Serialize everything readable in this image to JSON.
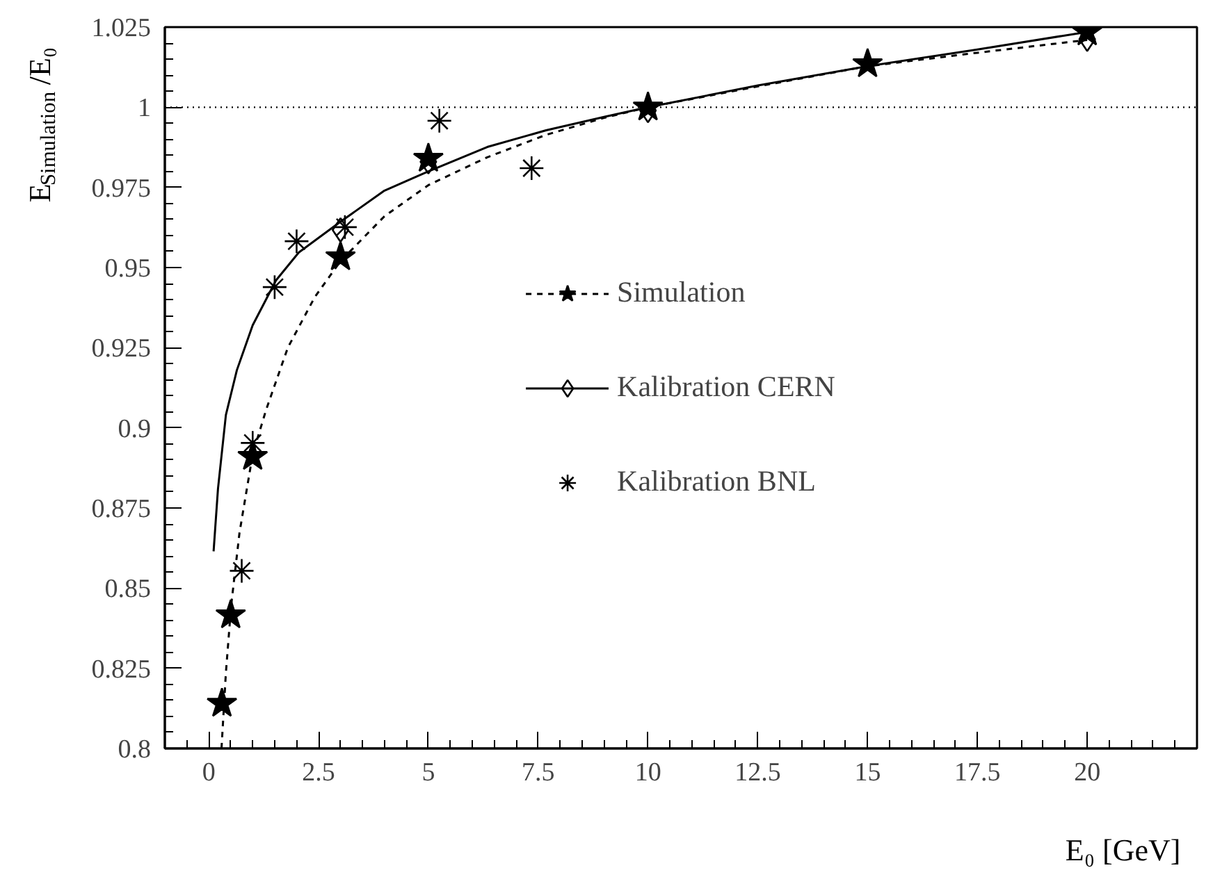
{
  "chart_data": {
    "type": "scatter",
    "xlabel": "E₀ [GeV]",
    "ylabel": "E$_{Simulation}$/E₀",
    "xlim": [
      -1,
      22.5
    ],
    "ylim": [
      0.8,
      1.025
    ],
    "xticks": [
      0,
      2.5,
      5,
      7.5,
      10,
      12.5,
      15,
      17.5,
      20
    ],
    "yticks": [
      0.8,
      0.825,
      0.85,
      0.875,
      0.9,
      0.925,
      0.95,
      0.975,
      1,
      1.025
    ],
    "grid": false,
    "legend": "center",
    "ref_lines": [
      {
        "axis": "y",
        "value": 1,
        "color": "#000000",
        "line_style": "dotted"
      }
    ],
    "series": [
      {
        "type": "line",
        "color": "#000000",
        "line_style": "dashed",
        "marker": "none",
        "x": [
          0.29,
          0.39,
          0.51,
          0.7,
          1.0,
          1.31,
          1.8,
          2.41,
          3.0,
          4.0,
          5.0,
          6.34,
          7.68,
          9.0,
          10,
          12.5,
          15,
          17.5,
          20
        ],
        "values": [
          0.8,
          0.8236,
          0.8446,
          0.8673,
          0.8918,
          0.9058,
          0.925,
          0.9407,
          0.952,
          0.966,
          0.9757,
          0.9844,
          0.9914,
          0.9967,
          1.0,
          1.0065,
          1.0128,
          1.017,
          1.021
        ]
      },
      {
        "name": "Simulation",
        "color": "#000000",
        "marker": "star",
        "x": [
          0.3,
          0.5,
          1,
          3,
          5,
          10,
          15,
          20
        ],
        "values": [
          0.814,
          0.8416,
          0.891,
          0.9533,
          0.984,
          1.0,
          1.0135,
          1.0234
        ]
      },
      {
        "type": "line",
        "color": "#000000",
        "line_style": "solid",
        "marker": "none",
        "x": [
          0.11,
          0.21,
          0.39,
          0.64,
          1.0,
          1.53,
          2.05,
          3.0,
          4.0,
          5.0,
          6.34,
          7.68,
          9.0,
          10,
          12.5,
          15,
          17.5,
          20
        ],
        "values": [
          0.8615,
          0.881,
          0.904,
          0.918,
          0.932,
          0.946,
          0.9547,
          0.9643,
          0.974,
          0.98,
          0.9876,
          0.9928,
          0.997,
          1.0,
          1.0068,
          1.0128,
          1.018,
          1.0235
        ]
      },
      {
        "name": "Kalibration CERN",
        "color": "#000000",
        "marker": "diamond",
        "x": [
          3,
          5,
          10,
          20
        ],
        "values": [
          0.9617,
          0.983,
          0.999,
          1.0212
        ]
      },
      {
        "name": "Kalibration BNL",
        "color": "#000000",
        "marker": "cross",
        "x": [
          0.75,
          1.0,
          1.5,
          2.0,
          3.1,
          5.25,
          7.35
        ],
        "values": [
          0.8554,
          0.8953,
          0.9439,
          0.9582,
          0.9626,
          0.9958,
          0.981
        ]
      }
    ]
  }
}
